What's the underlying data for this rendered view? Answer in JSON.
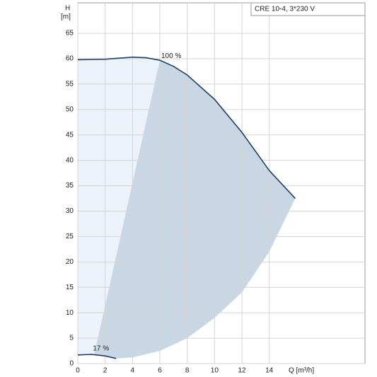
{
  "chart_data": {
    "type": "line",
    "title": "CRE 10-4, 3*230 V",
    "ylabel": [
      "H",
      "[m]"
    ],
    "xlabel": "Q [m³/h]",
    "xlim": [
      0,
      21
    ],
    "ylim": [
      0,
      71
    ],
    "xticks": [
      0,
      2,
      4,
      6,
      8,
      10,
      12,
      14
    ],
    "yticks": [
      0,
      5,
      10,
      15,
      20,
      25,
      30,
      35,
      40,
      45,
      50,
      55,
      60,
      65
    ],
    "grid": true,
    "series": [
      {
        "name": "100 %",
        "color": "#1f3f6b",
        "x": [
          0,
          2,
          4,
          5,
          6,
          7,
          8,
          10,
          12,
          14,
          15.9
        ],
        "values": [
          59.8,
          59.9,
          60.3,
          60.2,
          59.7,
          58.5,
          56.8,
          52,
          45.5,
          38,
          32.5
        ]
      },
      {
        "name": "17 %",
        "color": "#1f3f6b",
        "x": [
          0,
          1,
          2,
          2.8
        ],
        "values": [
          1.7,
          1.8,
          1.5,
          1.0
        ]
      }
    ],
    "areas": [
      {
        "color": "#ebf2f9",
        "x": [
          0,
          2,
          4,
          5,
          6,
          1.2,
          0
        ],
        "y": [
          59.8,
          59.9,
          60.3,
          60.2,
          59.7,
          1.8,
          1.7
        ]
      },
      {
        "color": "#c9d7e4",
        "x": [
          6,
          7,
          8,
          10,
          12,
          14,
          15.9,
          14,
          12,
          10,
          8,
          6,
          4,
          2.8,
          1.2
        ],
        "y": [
          59.7,
          58.5,
          56.8,
          52,
          45.5,
          38,
          32.5,
          22,
          14,
          9,
          5,
          2.5,
          1.2,
          1.0,
          1.8
        ]
      }
    ]
  }
}
